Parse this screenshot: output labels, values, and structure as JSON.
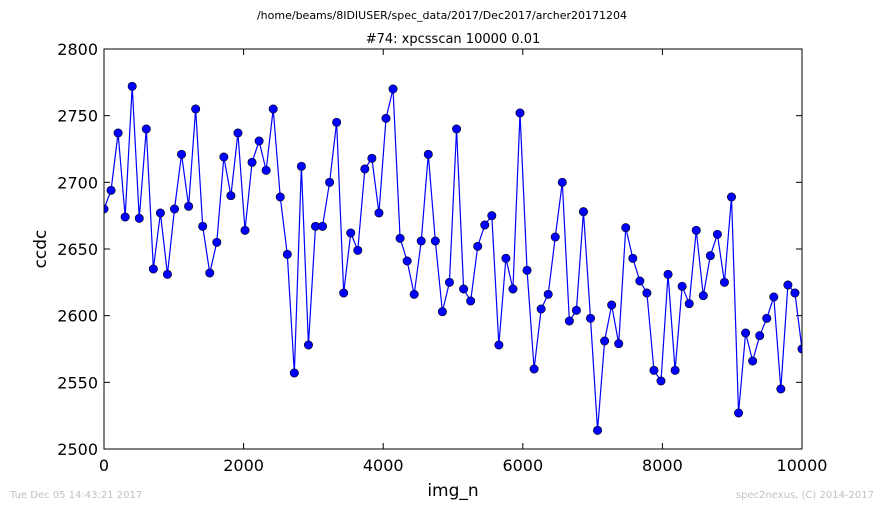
{
  "figure": {
    "suptitle": "/home/beams/8IDIUSER/spec_data/2017/Dec2017/archer20171204",
    "footer_left": "Tue Dec 05 14:43:21 2017",
    "footer_right": "spec2nexus, (C) 2014-2017"
  },
  "chart_data": {
    "type": "line",
    "title": "#74: xpcsscan 10000 0.01",
    "xlabel": "img_n",
    "ylabel": "ccdc",
    "xlim": [
      0,
      10000
    ],
    "ylim": [
      2500,
      2800
    ],
    "xticks": [
      0,
      2000,
      4000,
      6000,
      8000,
      10000
    ],
    "yticks": [
      2500,
      2550,
      2600,
      2650,
      2700,
      2750,
      2800
    ],
    "grid": false,
    "line_color": "#0000ff",
    "marker_color": "#0000ff",
    "marker": "circle",
    "series": [
      {
        "x": [
          0,
          101,
          202,
          303,
          404,
          505,
          606,
          707,
          808,
          909,
          1010,
          1111,
          1212,
          1313,
          1414,
          1515,
          1616,
          1717,
          1818,
          1919,
          2020,
          2121,
          2222,
          2323,
          2424,
          2525,
          2626,
          2727,
          2828,
          2929,
          3030,
          3131,
          3232,
          3333,
          3434,
          3535,
          3636,
          3737,
          3838,
          3939,
          4040,
          4141,
          4242,
          4343,
          4444,
          4545,
          4646,
          4747,
          4848,
          4949,
          5051,
          5152,
          5253,
          5354,
          5455,
          5556,
          5657,
          5758,
          5859,
          5960,
          6061,
          6162,
          6263,
          6364,
          6465,
          6566,
          6667,
          6768,
          6869,
          6970,
          7071,
          7172,
          7273,
          7374,
          7475,
          7576,
          7677,
          7778,
          7879,
          7980,
          8081,
          8182,
          8283,
          8384,
          8485,
          8586,
          8687,
          8788,
          8889,
          8990,
          9091,
          9192,
          9293,
          9394,
          9495,
          9596,
          9697,
          9798,
          9899,
          10000
        ],
        "y": [
          2680,
          2694,
          2737,
          2674,
          2772,
          2673,
          2740,
          2635,
          2677,
          2631,
          2680,
          2721,
          2682,
          2755,
          2667,
          2632,
          2655,
          2719,
          2690,
          2737,
          2664,
          2715,
          2731,
          2709,
          2755,
          2689,
          2646,
          2557,
          2712,
          2578,
          2667,
          2667,
          2700,
          2745,
          2617,
          2662,
          2649,
          2710,
          2718,
          2677,
          2748,
          2770,
          2658,
          2641,
          2616,
          2656,
          2721,
          2656,
          2603,
          2625,
          2740,
          2620,
          2611,
          2652,
          2668,
          2675,
          2578,
          2643,
          2620,
          2752,
          2634,
          2560,
          2605,
          2616,
          2659,
          2700,
          2596,
          2604,
          2678,
          2598,
          2514,
          2581,
          2608,
          2579,
          2666,
          2643,
          2626,
          2617,
          2559,
          2551,
          2631,
          2559,
          2622,
          2609,
          2664,
          2615,
          2645,
          2661,
          2625,
          2689,
          2527,
          2587,
          2566,
          2585,
          2598,
          2614,
          2545,
          2623,
          2617,
          2575
        ]
      }
    ]
  }
}
